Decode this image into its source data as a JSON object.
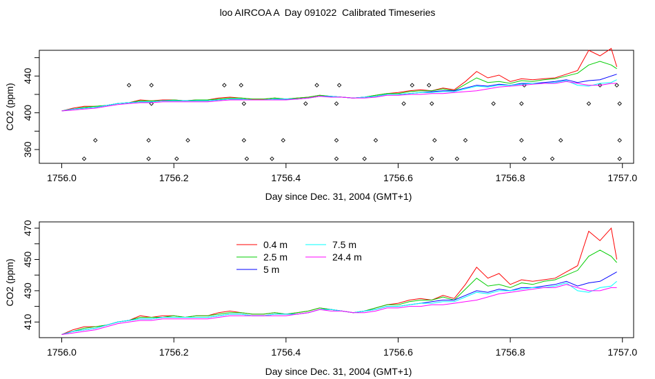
{
  "title": "loo AIRCOA A  Day 091022  Calibrated Timeseries",
  "colors": {
    "0.4 m": "#ff0000",
    "2.5 m": "#00cd00",
    "5 m": "#0000ff",
    "7.5 m": "#00ffff",
    "24.4 m": "#ff00ff"
  },
  "chart_data": [
    {
      "type": "line",
      "xlabel": "Day since Dec. 31, 2004 (GMT+1)",
      "ylabel": "CO2 (ppm)",
      "xlim": [
        1755.96,
        1757.02
      ],
      "ylim": [
        345,
        468
      ],
      "xticks": [
        "1756.0",
        "1756.2",
        "1756.4",
        "1756.6",
        "1756.8",
        "1757.0"
      ],
      "yticks": [
        "360",
        "400",
        "440"
      ],
      "grid": false,
      "series": [
        {
          "name": "0.4 m",
          "x": [
            1756.0,
            1756.02,
            1756.04,
            1756.06,
            1756.08,
            1756.1,
            1756.12,
            1756.14,
            1756.16,
            1756.18,
            1756.2,
            1756.22,
            1756.24,
            1756.26,
            1756.28,
            1756.3,
            1756.32,
            1756.34,
            1756.36,
            1756.38,
            1756.4,
            1756.42,
            1756.44,
            1756.46,
            1756.48,
            1756.5,
            1756.52,
            1756.54,
            1756.56,
            1756.58,
            1756.6,
            1756.62,
            1756.64,
            1756.66,
            1756.68,
            1756.7,
            1756.72,
            1756.74,
            1756.76,
            1756.78,
            1756.8,
            1756.82,
            1756.84,
            1756.86,
            1756.88,
            1756.9,
            1756.92,
            1756.94,
            1756.96,
            1756.98,
            1756.99
          ],
          "y": [
            402,
            405,
            407,
            407,
            408,
            410,
            411,
            414,
            413,
            414,
            414,
            413,
            414,
            414,
            416,
            417,
            416,
            415,
            415,
            416,
            415,
            416,
            417,
            419,
            418,
            417,
            416,
            417,
            419,
            421,
            422,
            424,
            425,
            424,
            427,
            425,
            434,
            445,
            438,
            441,
            434,
            437,
            436,
            437,
            438,
            442,
            446,
            468,
            462,
            470,
            450
          ]
        },
        {
          "name": "2.5 m",
          "x": [
            1756.0,
            1756.02,
            1756.04,
            1756.06,
            1756.08,
            1756.1,
            1756.12,
            1756.14,
            1756.16,
            1756.18,
            1756.2,
            1756.22,
            1756.24,
            1756.26,
            1756.28,
            1756.3,
            1756.32,
            1756.34,
            1756.36,
            1756.38,
            1756.4,
            1756.42,
            1756.44,
            1756.46,
            1756.48,
            1756.5,
            1756.52,
            1756.54,
            1756.56,
            1756.58,
            1756.6,
            1756.62,
            1756.64,
            1756.66,
            1756.68,
            1756.7,
            1756.72,
            1756.74,
            1756.76,
            1756.78,
            1756.8,
            1756.82,
            1756.84,
            1756.86,
            1756.88,
            1756.9,
            1756.92,
            1756.94,
            1756.96,
            1756.98,
            1756.99
          ],
          "y": [
            402,
            404,
            406,
            407,
            408,
            410,
            411,
            413,
            413,
            413,
            414,
            413,
            414,
            414,
            415,
            416,
            416,
            415,
            415,
            416,
            415,
            416,
            417,
            419,
            418,
            417,
            416,
            417,
            419,
            421,
            421,
            423,
            424,
            424,
            426,
            424,
            431,
            438,
            433,
            434,
            432,
            435,
            434,
            436,
            437,
            440,
            443,
            452,
            456,
            452,
            448
          ]
        },
        {
          "name": "5 m",
          "x": [
            1756.0,
            1756.02,
            1756.04,
            1756.06,
            1756.08,
            1756.1,
            1756.12,
            1756.14,
            1756.16,
            1756.18,
            1756.2,
            1756.22,
            1756.24,
            1756.26,
            1756.28,
            1756.3,
            1756.32,
            1756.34,
            1756.36,
            1756.38,
            1756.4,
            1756.42,
            1756.44,
            1756.46,
            1756.48,
            1756.5,
            1756.52,
            1756.54,
            1756.56,
            1756.58,
            1756.6,
            1756.62,
            1756.64,
            1756.66,
            1756.68,
            1756.7,
            1756.72,
            1756.74,
            1756.76,
            1756.78,
            1756.8,
            1756.82,
            1756.84,
            1756.86,
            1756.88,
            1756.9,
            1756.92,
            1756.94,
            1756.96,
            1756.98,
            1756.99
          ],
          "y": [
            402,
            404,
            405,
            406,
            408,
            410,
            411,
            412,
            412,
            413,
            413,
            413,
            413,
            413,
            414,
            415,
            415,
            414,
            414,
            415,
            415,
            415,
            416,
            418,
            418,
            417,
            416,
            417,
            418,
            420,
            420,
            421,
            422,
            423,
            424,
            424,
            427,
            430,
            429,
            431,
            430,
            432,
            432,
            433,
            434,
            436,
            433,
            435,
            436,
            440,
            442
          ]
        },
        {
          "name": "7.5 m",
          "x": [
            1756.0,
            1756.02,
            1756.04,
            1756.06,
            1756.08,
            1756.1,
            1756.12,
            1756.14,
            1756.16,
            1756.18,
            1756.2,
            1756.22,
            1756.24,
            1756.26,
            1756.28,
            1756.3,
            1756.32,
            1756.34,
            1756.36,
            1756.38,
            1756.4,
            1756.42,
            1756.44,
            1756.46,
            1756.48,
            1756.5,
            1756.52,
            1756.54,
            1756.56,
            1756.58,
            1756.6,
            1756.62,
            1756.64,
            1756.66,
            1756.68,
            1756.7,
            1756.72,
            1756.74,
            1756.76,
            1756.78,
            1756.8,
            1756.82,
            1756.84,
            1756.86,
            1756.88,
            1756.9,
            1756.92,
            1756.94,
            1756.96,
            1756.98,
            1756.99
          ],
          "y": [
            402,
            404,
            405,
            406,
            408,
            410,
            411,
            412,
            412,
            413,
            413,
            413,
            413,
            413,
            414,
            415,
            415,
            414,
            414,
            415,
            415,
            415,
            416,
            418,
            418,
            417,
            416,
            417,
            418,
            420,
            420,
            421,
            422,
            422,
            423,
            423,
            426,
            429,
            428,
            430,
            430,
            431,
            432,
            432,
            433,
            435,
            430,
            429,
            432,
            433,
            436
          ]
        },
        {
          "name": "24.4 m",
          "x": [
            1756.0,
            1756.02,
            1756.04,
            1756.06,
            1756.08,
            1756.1,
            1756.12,
            1756.14,
            1756.16,
            1756.18,
            1756.2,
            1756.22,
            1756.24,
            1756.26,
            1756.28,
            1756.3,
            1756.32,
            1756.34,
            1756.36,
            1756.38,
            1756.4,
            1756.42,
            1756.44,
            1756.46,
            1756.48,
            1756.5,
            1756.52,
            1756.54,
            1756.56,
            1756.58,
            1756.6,
            1756.62,
            1756.64,
            1756.66,
            1756.68,
            1756.7,
            1756.72,
            1756.74,
            1756.76,
            1756.78,
            1756.8,
            1756.82,
            1756.84,
            1756.86,
            1756.88,
            1756.9,
            1756.92,
            1756.94,
            1756.96,
            1756.98,
            1756.99
          ],
          "y": [
            402,
            403,
            404,
            405,
            407,
            409,
            410,
            411,
            411,
            412,
            412,
            412,
            412,
            412,
            413,
            414,
            414,
            414,
            414,
            414,
            414,
            415,
            416,
            418,
            417,
            417,
            416,
            416,
            417,
            419,
            419,
            420,
            420,
            421,
            421,
            422,
            423,
            424,
            426,
            428,
            429,
            430,
            431,
            432,
            432,
            434,
            432,
            430,
            430,
            432,
            432
          ]
        }
      ],
      "markers": {
        "x": [
          1756.04,
          1756.06,
          1756.12,
          1756.155,
          1756.16,
          1756.16,
          1756.155,
          1756.205,
          1756.225,
          1756.29,
          1756.32,
          1756.325,
          1756.325,
          1756.33,
          1756.375,
          1756.395,
          1756.435,
          1756.455,
          1756.49,
          1756.49,
          1756.495,
          1756.49,
          1756.54,
          1756.56,
          1756.61,
          1756.625,
          1756.655,
          1756.66,
          1756.665,
          1756.66,
          1756.705,
          1756.72,
          1756.77,
          1756.82,
          1756.82,
          1756.825,
          1756.825,
          1756.875,
          1756.89,
          1756.94,
          1756.96,
          1756.99,
          1756.995,
          1756.995,
          1756.995
        ],
        "y": [
          350,
          370,
          430,
          370,
          430,
          410,
          350,
          350,
          370,
          430,
          430,
          410,
          370,
          350,
          350,
          370,
          410,
          430,
          350,
          370,
          430,
          410,
          350,
          370,
          410,
          430,
          430,
          410,
          370,
          350,
          350,
          370,
          410,
          410,
          370,
          350,
          430,
          350,
          370,
          410,
          430,
          430,
          410,
          370,
          350
        ]
      }
    },
    {
      "type": "line",
      "xlabel": "Day since Dec. 31, 2004 (GMT+1)",
      "ylabel": "CO2 (ppm)",
      "xlim": [
        1755.96,
        1757.02
      ],
      "ylim": [
        400,
        474
      ],
      "xticks": [
        "1756.0",
        "1756.2",
        "1756.4",
        "1756.6",
        "1756.8",
        "1757.0"
      ],
      "yticks": [
        "410",
        "430",
        "450",
        "470"
      ],
      "grid": false,
      "legend": {
        "placement": "top-left",
        "entries": [
          "0.4 m",
          "2.5 m",
          "5 m",
          "7.5 m",
          "24.4 m"
        ]
      }
    }
  ]
}
